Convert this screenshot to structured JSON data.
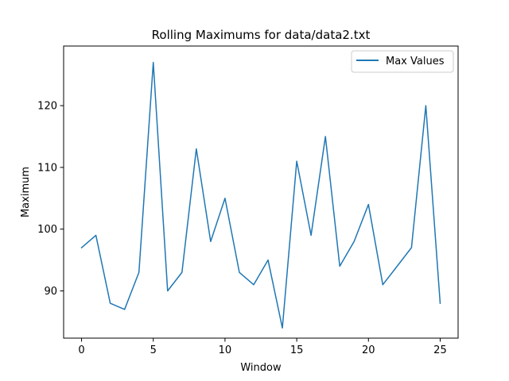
{
  "chart_data": {
    "type": "line",
    "title": "Rolling Maximums for data/data2.txt",
    "xlabel": "Window",
    "ylabel": "Maximum",
    "xlim": [
      -1.25,
      26.25
    ],
    "ylim": [
      82.35,
      129.65
    ],
    "xticks": [
      0,
      5,
      10,
      15,
      20,
      25
    ],
    "yticks": [
      90,
      100,
      110,
      120
    ],
    "grid": false,
    "legend_position": "top-right",
    "series": [
      {
        "name": "Max Values",
        "color": "#1f77b4",
        "x": [
          0,
          1,
          2,
          3,
          4,
          5,
          6,
          7,
          8,
          9,
          10,
          11,
          12,
          13,
          14,
          15,
          16,
          17,
          18,
          19,
          20,
          21,
          22,
          23,
          24,
          25
        ],
        "y": [
          97,
          99,
          88,
          87,
          93,
          127,
          90,
          93,
          113,
          98,
          105,
          93,
          91,
          95,
          84,
          111,
          99,
          115,
          94,
          98,
          104,
          91,
          94,
          97,
          120,
          88
        ]
      }
    ]
  }
}
